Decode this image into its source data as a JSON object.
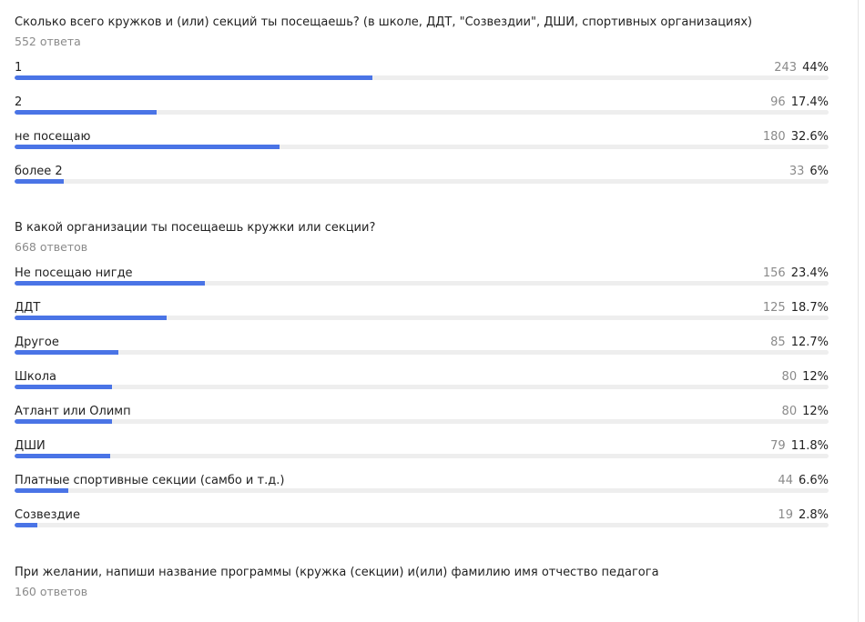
{
  "accent_color": "#4a74e6",
  "questions": [
    {
      "title": "Сколько всего кружков и (или) секций ты посещаешь? (в школе, ДДТ, \"Созвездии\", ДШИ, спортивных организациях)",
      "count_label": "552 ответа",
      "options": [
        {
          "label": "1",
          "count": "243",
          "percent": "44%",
          "fraction": 0.44
        },
        {
          "label": "2",
          "count": "96",
          "percent": "17.4%",
          "fraction": 0.174
        },
        {
          "label": "не посещаю",
          "count": "180",
          "percent": "32.6%",
          "fraction": 0.326
        },
        {
          "label": "более 2",
          "count": "33",
          "percent": "6%",
          "fraction": 0.06
        }
      ]
    },
    {
      "title": "В какой организации ты посещаешь кружки или секции?",
      "count_label": "668 ответов",
      "options": [
        {
          "label": "Не посещаю нигде",
          "count": "156",
          "percent": "23.4%",
          "fraction": 0.234
        },
        {
          "label": "ДДТ",
          "count": "125",
          "percent": "18.7%",
          "fraction": 0.187
        },
        {
          "label": "Другое",
          "count": "85",
          "percent": "12.7%",
          "fraction": 0.127
        },
        {
          "label": "Школа",
          "count": "80",
          "percent": "12%",
          "fraction": 0.12
        },
        {
          "label": "Атлант или Олимп",
          "count": "80",
          "percent": "12%",
          "fraction": 0.12
        },
        {
          "label": "ДШИ",
          "count": "79",
          "percent": "11.8%",
          "fraction": 0.118
        },
        {
          "label": "Платные спортивные секции (самбо и т.д.)",
          "count": "44",
          "percent": "6.6%",
          "fraction": 0.066
        },
        {
          "label": "Созвездие",
          "count": "19",
          "percent": "2.8%",
          "fraction": 0.028
        }
      ]
    },
    {
      "title": "При желании, напиши название программы (кружка (секции) и(или) фамилию имя отчество педагога",
      "count_label": "160 ответов",
      "options": []
    }
  ]
}
